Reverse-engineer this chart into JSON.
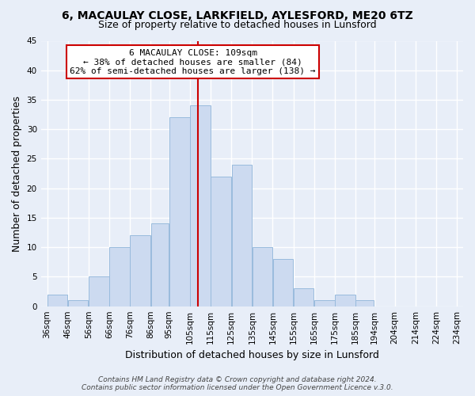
{
  "title": "6, MACAULAY CLOSE, LARKFIELD, AYLESFORD, ME20 6TZ",
  "subtitle": "Size of property relative to detached houses in Lunsford",
  "xlabel": "Distribution of detached houses by size in Lunsford",
  "ylabel": "Number of detached properties",
  "bar_color": "#ccdaf0",
  "bar_edgecolor": "#99bbdd",
  "bin_labels": [
    "36sqm",
    "46sqm",
    "56sqm",
    "66sqm",
    "76sqm",
    "86sqm",
    "95sqm",
    "105sqm",
    "115sqm",
    "125sqm",
    "135sqm",
    "145sqm",
    "155sqm",
    "165sqm",
    "175sqm",
    "185sqm",
    "194sqm",
    "204sqm",
    "214sqm",
    "224sqm",
    "234sqm"
  ],
  "bar_heights": [
    2,
    1,
    5,
    10,
    12,
    14,
    32,
    34,
    22,
    24,
    10,
    8,
    3,
    1,
    2,
    1,
    0,
    0,
    0,
    0
  ],
  "bin_edges": [
    36,
    46,
    56,
    66,
    76,
    86,
    95,
    105,
    115,
    125,
    135,
    145,
    155,
    165,
    175,
    185,
    194,
    204,
    214,
    224,
    234
  ],
  "ylim": [
    0,
    45
  ],
  "yticks": [
    0,
    5,
    10,
    15,
    20,
    25,
    30,
    35,
    40,
    45
  ],
  "ref_line_x": 109,
  "ref_line_color": "#cc0000",
  "annotation_title": "6 MACAULAY CLOSE: 109sqm",
  "annotation_line1": "← 38% of detached houses are smaller (84)",
  "annotation_line2": "62% of semi-detached houses are larger (138) →",
  "annotation_box_facecolor": "#ffffff",
  "annotation_box_edgecolor": "#cc0000",
  "footer1": "Contains HM Land Registry data © Crown copyright and database right 2024.",
  "footer2": "Contains public sector information licensed under the Open Government Licence v.3.0.",
  "background_color": "#e8eef8",
  "plot_bg_color": "#e8eef8",
  "grid_color": "#ffffff",
  "title_fontsize": 10,
  "subtitle_fontsize": 9,
  "axis_label_fontsize": 9,
  "tick_fontsize": 7.5,
  "footer_fontsize": 6.5,
  "annotation_fontsize": 8
}
